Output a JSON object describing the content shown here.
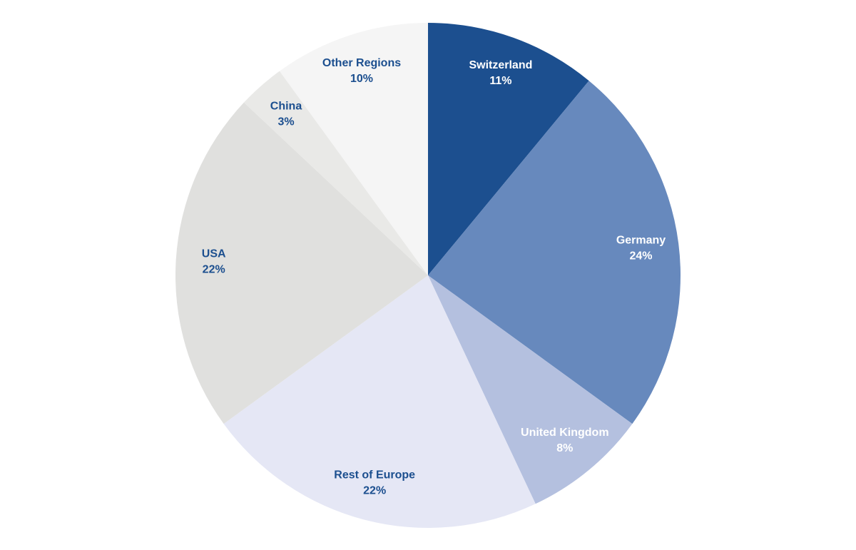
{
  "chart_data": {
    "type": "pie",
    "categories": [
      "Switzerland",
      "Germany",
      "United Kingdom",
      "Rest of Europe",
      "USA",
      "China",
      "Other Regions"
    ],
    "values": [
      11,
      24,
      8,
      22,
      22,
      3,
      10
    ],
    "value_labels": [
      "11%",
      "24%",
      "8%",
      "22%",
      "22%",
      "3%",
      "10%"
    ],
    "colors": [
      "#1c4f8f",
      "#6789bd",
      "#b4c0df",
      "#e5e7f5",
      "#e0e0de",
      "#e9e9e7",
      "#f5f5f5"
    ]
  }
}
